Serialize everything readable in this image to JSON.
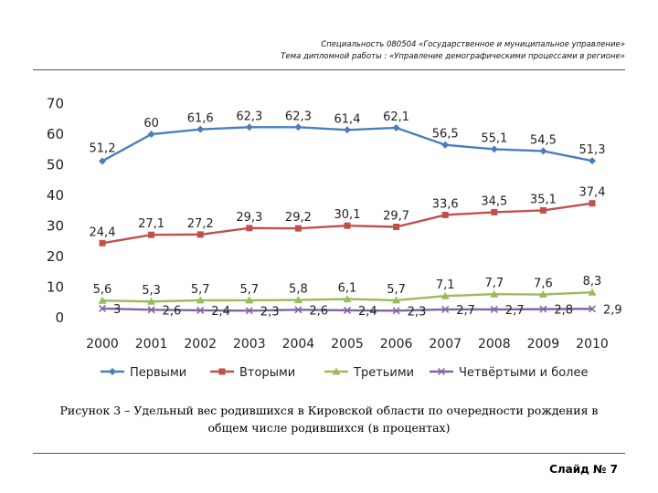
{
  "header": {
    "line1": "Специальность 080504 «Государственное и муниципальное управление»",
    "line2": "Тема дипломной работы : «Управление демографическими процессами в регионе»"
  },
  "caption": {
    "line1": "Рисунок 3 – Удельный вес родившихся в Кировской области по очередности рождения в",
    "line2": "общем числе родившихся (в процентах)"
  },
  "footer": {
    "slide_label": "Слайд № 7"
  },
  "chart_data": {
    "type": "line",
    "x": [
      "2000",
      "2001",
      "2002",
      "2003",
      "2004",
      "2005",
      "2006",
      "2007",
      "2008",
      "2009",
      "2010"
    ],
    "ylim": [
      0,
      70
    ],
    "yticks": [
      0,
      10,
      20,
      30,
      40,
      50,
      60,
      70
    ],
    "grid": false,
    "legend_position": "bottom",
    "series": [
      {
        "name": "Первыми",
        "color": "#4a7ebb",
        "marker": "diamond",
        "values": [
          51.2,
          60,
          61.6,
          62.3,
          62.3,
          61.4,
          62.1,
          56.5,
          55.1,
          54.5,
          51.3
        ],
        "labels": [
          "51,2",
          "60",
          "61,6",
          "62,3",
          "62,3",
          "61,4",
          "62,1",
          "56,5",
          "55,1",
          "54,5",
          "51,3"
        ]
      },
      {
        "name": "Вторыми",
        "color": "#c0504d",
        "marker": "square",
        "values": [
          24.4,
          27.1,
          27.2,
          29.3,
          29.2,
          30.1,
          29.7,
          33.6,
          34.5,
          35.1,
          37.4
        ],
        "labels": [
          "24,4",
          "27,1",
          "27,2",
          "29,3",
          "29,2",
          "30,1",
          "29,7",
          "33,6",
          "34,5",
          "35,1",
          "37,4"
        ]
      },
      {
        "name": "Третьими",
        "color": "#9bbb59",
        "marker": "triangle",
        "values": [
          5.6,
          5.3,
          5.7,
          5.7,
          5.8,
          6.1,
          5.7,
          7.1,
          7.7,
          7.6,
          8.3
        ],
        "labels": [
          "5,6",
          "5,3",
          "5,7",
          "5,7",
          "5,8",
          "6,1",
          "5,7",
          "7,1",
          "7,7",
          "7,6",
          "8,3"
        ]
      },
      {
        "name": "Четвёртыми и более",
        "color": "#8064a2",
        "marker": "x",
        "values": [
          3,
          2.6,
          2.4,
          2.3,
          2.6,
          2.4,
          2.3,
          2.7,
          2.7,
          2.8,
          2.9
        ],
        "labels": [
          "3",
          "2,6",
          "2,4",
          "2,3",
          "2,6",
          "2,4",
          "2,3",
          "2,7",
          "2,7",
          "2,8",
          "2,9"
        ]
      }
    ]
  }
}
